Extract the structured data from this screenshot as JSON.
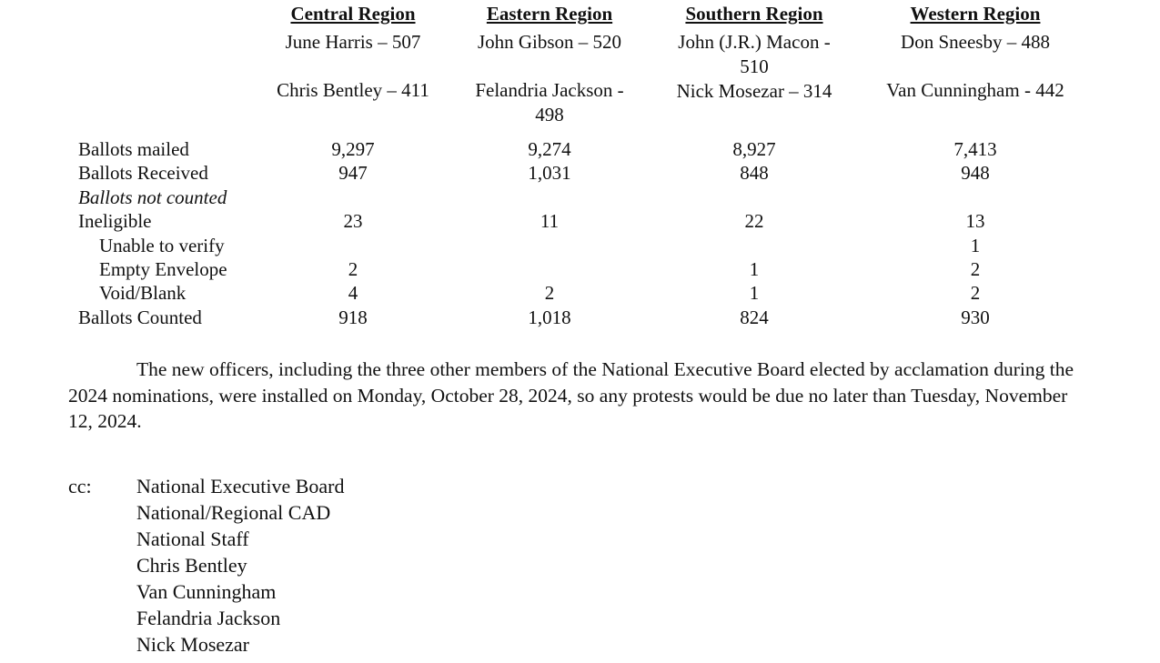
{
  "regions": [
    {
      "title": "Central Region",
      "candidates": [
        "June Harris – 507",
        "Chris Bentley – 411"
      ]
    },
    {
      "title": "Eastern Region",
      "candidates": [
        "John Gibson – 520",
        "Felandria Jackson -",
        "498"
      ]
    },
    {
      "title": "Southern Region",
      "candidates": [
        "John (J.R.) Macon -",
        "510",
        "Nick Mosezar – 314"
      ]
    },
    {
      "title": "Western Region",
      "candidates": [
        "Don Sneesby – 488",
        "Van Cunningham - 442"
      ]
    }
  ],
  "stats": {
    "rows": [
      {
        "label": "Ballots mailed",
        "values": [
          "9,297",
          "9,274",
          "8,927",
          "7,413"
        ]
      },
      {
        "label": "Ballots Received",
        "values": [
          "947",
          "1,031",
          "848",
          "948"
        ]
      },
      {
        "label": "Ballots not counted",
        "values": [
          "",
          "",
          "",
          ""
        ]
      },
      {
        "label": "Ineligible",
        "values": [
          "23",
          "11",
          "22",
          "13"
        ]
      },
      {
        "label": "Unable to verify",
        "values": [
          "",
          "",
          "",
          "1"
        ]
      },
      {
        "label": "Empty Envelope",
        "values": [
          "2",
          "",
          "1",
          "2"
        ]
      },
      {
        "label": "Void/Blank",
        "values": [
          "4",
          "2",
          "1",
          "2"
        ]
      },
      {
        "label": "Ballots Counted",
        "values": [
          "918",
          "1,018",
          "824",
          "930"
        ]
      }
    ]
  },
  "paragraph": "The new officers, including the three other members of the National Executive Board elected by acclamation during the 2024 nominations, were installed on Monday, October 28, 2024, so any protests would be due no later than Tuesday, November 12, 2024.",
  "cc": {
    "label": "cc:",
    "recipients": [
      "National Executive Board",
      "National/Regional CAD",
      "National Staff",
      "Chris Bentley",
      "Van Cunningham",
      "Felandria Jackson",
      "Nick Mosezar"
    ]
  }
}
